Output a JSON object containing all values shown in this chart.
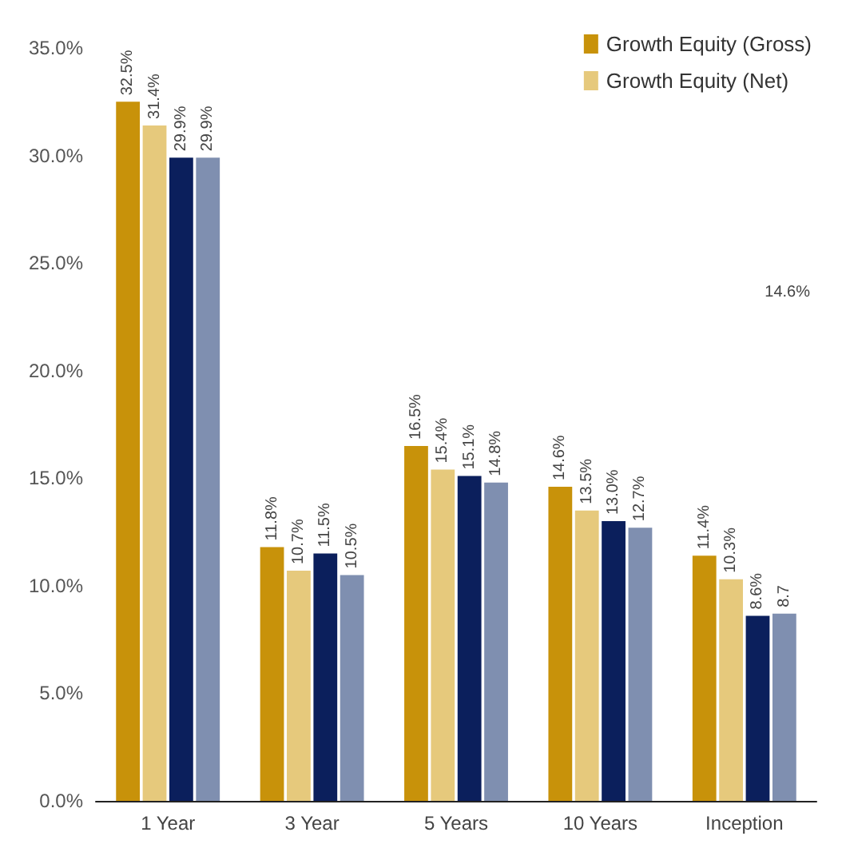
{
  "chart_data": {
    "type": "bar",
    "categories": [
      "1 Year",
      "3 Year",
      "5 Years",
      "10 Years",
      "Inception"
    ],
    "series": [
      {
        "name": "Growth Equity (Gross)",
        "color": "#c8920a",
        "values": [
          32.5,
          11.8,
          16.5,
          14.6,
          11.4
        ],
        "value_labels": [
          "32.5%",
          "11.8%",
          "16.5%",
          "14.6%",
          "11.4%"
        ]
      },
      {
        "name": "Growth Equity (Net)",
        "color": "#e6c97c",
        "values": [
          31.4,
          10.7,
          15.4,
          13.5,
          10.3
        ],
        "value_labels": [
          "31.4%",
          "10.7%",
          "15.4%",
          "13.5%",
          "10.3%"
        ]
      },
      {
        "color": "#0b1f5c",
        "values": [
          29.9,
          11.5,
          15.1,
          13.0,
          8.6
        ],
        "value_labels": [
          "29.9%",
          "11.5%",
          "15.1%",
          "13.0%",
          "8.6%"
        ]
      },
      {
        "color": "#7f8fb0",
        "values": [
          29.9,
          10.5,
          14.8,
          12.7,
          8.7
        ],
        "value_labels": [
          "29.9%",
          "10.5%",
          "14.8%",
          "12.7%",
          "8.7"
        ]
      }
    ],
    "ylim": [
      0,
      35
    ],
    "yticks": [
      {
        "value": 0,
        "label": "0.0%"
      },
      {
        "value": 5,
        "label": "5.0%"
      },
      {
        "value": 10,
        "label": "10.0%"
      },
      {
        "value": 15,
        "label": "15.0%"
      },
      {
        "value": 20,
        "label": "20.0%"
      },
      {
        "value": 25,
        "label": "25.0%"
      },
      {
        "value": 30,
        "label": "30.0%"
      },
      {
        "value": 35,
        "label": "35.0%"
      }
    ],
    "grid": false,
    "legend": "top right",
    "annotations": [
      "14.6%"
    ]
  }
}
